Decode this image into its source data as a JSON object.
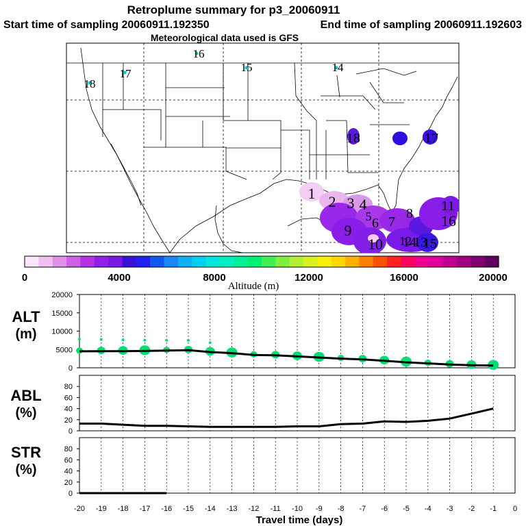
{
  "header": {
    "title": "Retroplume summary for p3_20060911",
    "start_label": "Start time of sampling 20060911.192350",
    "end_label": "End time of sampling 20060911.192603",
    "met_label": "Meteorological data used is GFS"
  },
  "colors": {
    "series_line": "#000000",
    "altitude_dots": "#00e070",
    "plume_low": "#f2c8f2",
    "plume_mid": "#8b1ee6",
    "plume_high": "#3a18e0",
    "station_marker": "#00c8c8"
  },
  "map": {
    "station_labels": [
      "16",
      "15",
      "14",
      "17",
      "18"
    ],
    "plume_labels": [
      "1",
      "2",
      "3",
      "4",
      "5",
      "6",
      "7",
      "8",
      "9",
      "10",
      "11",
      "12",
      "13",
      "14",
      "15",
      "16",
      "17",
      "18"
    ]
  },
  "colorbar": {
    "label": "Altitude (m)",
    "tick_labels": [
      "0",
      "4000",
      "8000",
      "12000",
      "16000",
      "20000"
    ],
    "stops": [
      "#fce6fc",
      "#f0c0f0",
      "#e090e8",
      "#d060e8",
      "#b830e8",
      "#9420e8",
      "#7a18e6",
      "#3a10d8",
      "#2020f0",
      "#1058f0",
      "#1888f8",
      "#10b0f8",
      "#00d0f0",
      "#00e8e0",
      "#00f0c0",
      "#00f098",
      "#00f070",
      "#40f050",
      "#80f040",
      "#b0f030",
      "#d8f020",
      "#f8f000",
      "#ffd800",
      "#ffb000",
      "#ff8000",
      "#ff5000",
      "#ff2020",
      "#ff0060",
      "#f00090",
      "#e000a0",
      "#c00090",
      "#a00080",
      "#800070",
      "#600060"
    ]
  },
  "chart_data": [
    {
      "type": "scatter",
      "panel": "ALT",
      "ylabel": [
        "ALT",
        "(m)"
      ],
      "x": [
        -20,
        -19,
        -18,
        -17,
        -16,
        -15,
        -14,
        -13,
        -12,
        -11,
        -10,
        -9,
        -8,
        -7,
        -6,
        -5,
        -4,
        -3,
        -2,
        -1
      ],
      "values": [
        4500,
        4550,
        4550,
        4600,
        4700,
        4800,
        4300,
        4000,
        3500,
        3400,
        3100,
        2800,
        2500,
        2300,
        1900,
        1500,
        1200,
        900,
        700,
        600
      ],
      "ylim": [
        0,
        20000
      ],
      "ytick_labels": [
        "0",
        "5000",
        "10000",
        "15000",
        "20000"
      ]
    },
    {
      "type": "line",
      "panel": "ABL",
      "ylabel": [
        "ABL",
        "(%)"
      ],
      "x": [
        -20,
        -19,
        -18,
        -17,
        -16,
        -15,
        -14,
        -13,
        -12,
        -11,
        -10,
        -9,
        -8,
        -7,
        -6,
        -5,
        -4,
        -3,
        -2,
        -1
      ],
      "values": [
        13,
        13,
        11,
        9,
        9,
        8,
        7,
        7,
        7,
        7,
        8,
        8,
        12,
        13,
        17,
        16,
        18,
        22,
        31,
        40
      ],
      "ylim": [
        0,
        100
      ],
      "ytick_labels": [
        "0",
        "20",
        "40",
        "60",
        "80"
      ]
    },
    {
      "type": "line",
      "panel": "STR",
      "ylabel": [
        "STR",
        "(%)"
      ],
      "x": [
        -20,
        -19,
        -18,
        -17,
        -16
      ],
      "values": [
        0,
        0,
        0,
        0,
        0
      ],
      "ylim": [
        0,
        100
      ],
      "ytick_labels": [
        "0",
        "20",
        "40",
        "60",
        "80"
      ]
    }
  ],
  "xaxis": {
    "label": "Travel time (days)",
    "tick_labels": [
      "-20",
      "-19",
      "-18",
      "-17",
      "-16",
      "-15",
      "-14",
      "-13",
      "-12",
      "-11",
      "-10",
      "-9",
      "-8",
      "-7",
      "-6",
      "-5",
      "-4",
      "-3",
      "-2",
      "-1",
      "0"
    ]
  }
}
